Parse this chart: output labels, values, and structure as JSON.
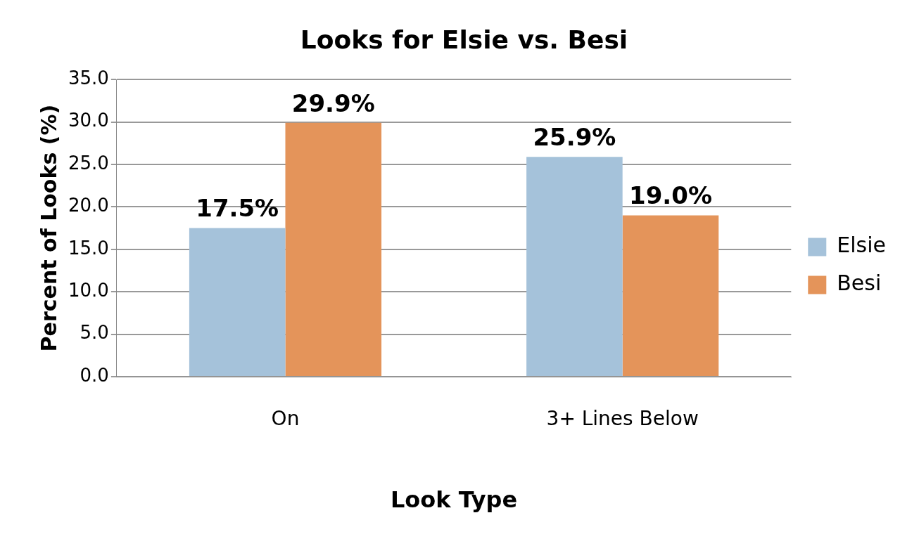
{
  "chart_data": {
    "type": "bar",
    "title": "Looks for Elsie vs. Besi",
    "xlabel": "Look Type",
    "ylabel": "Percent of Looks (%)",
    "categories": [
      "On",
      "3+ Lines Below"
    ],
    "series": [
      {
        "name": "Elsie",
        "color": "#a5c2da",
        "values": [
          17.5,
          25.9
        ],
        "value_labels": [
          "17.5%",
          "25.9%"
        ]
      },
      {
        "name": "Besi",
        "color": "#e4945a",
        "values": [
          29.9,
          19.0
        ],
        "value_labels": [
          "29.9%",
          "19.0%"
        ]
      }
    ],
    "ylim": [
      0,
      35
    ],
    "yticks": [
      {
        "value": 0,
        "label": "0.0"
      },
      {
        "value": 5,
        "label": "5.0"
      },
      {
        "value": 10,
        "label": "10.0"
      },
      {
        "value": 15,
        "label": "15.0"
      },
      {
        "value": 20,
        "label": "20.0"
      },
      {
        "value": 25,
        "label": "25.0"
      },
      {
        "value": 30,
        "label": "30.0"
      },
      {
        "value": 35,
        "label": "35.0"
      }
    ],
    "grid": "y",
    "legend": "right"
  }
}
